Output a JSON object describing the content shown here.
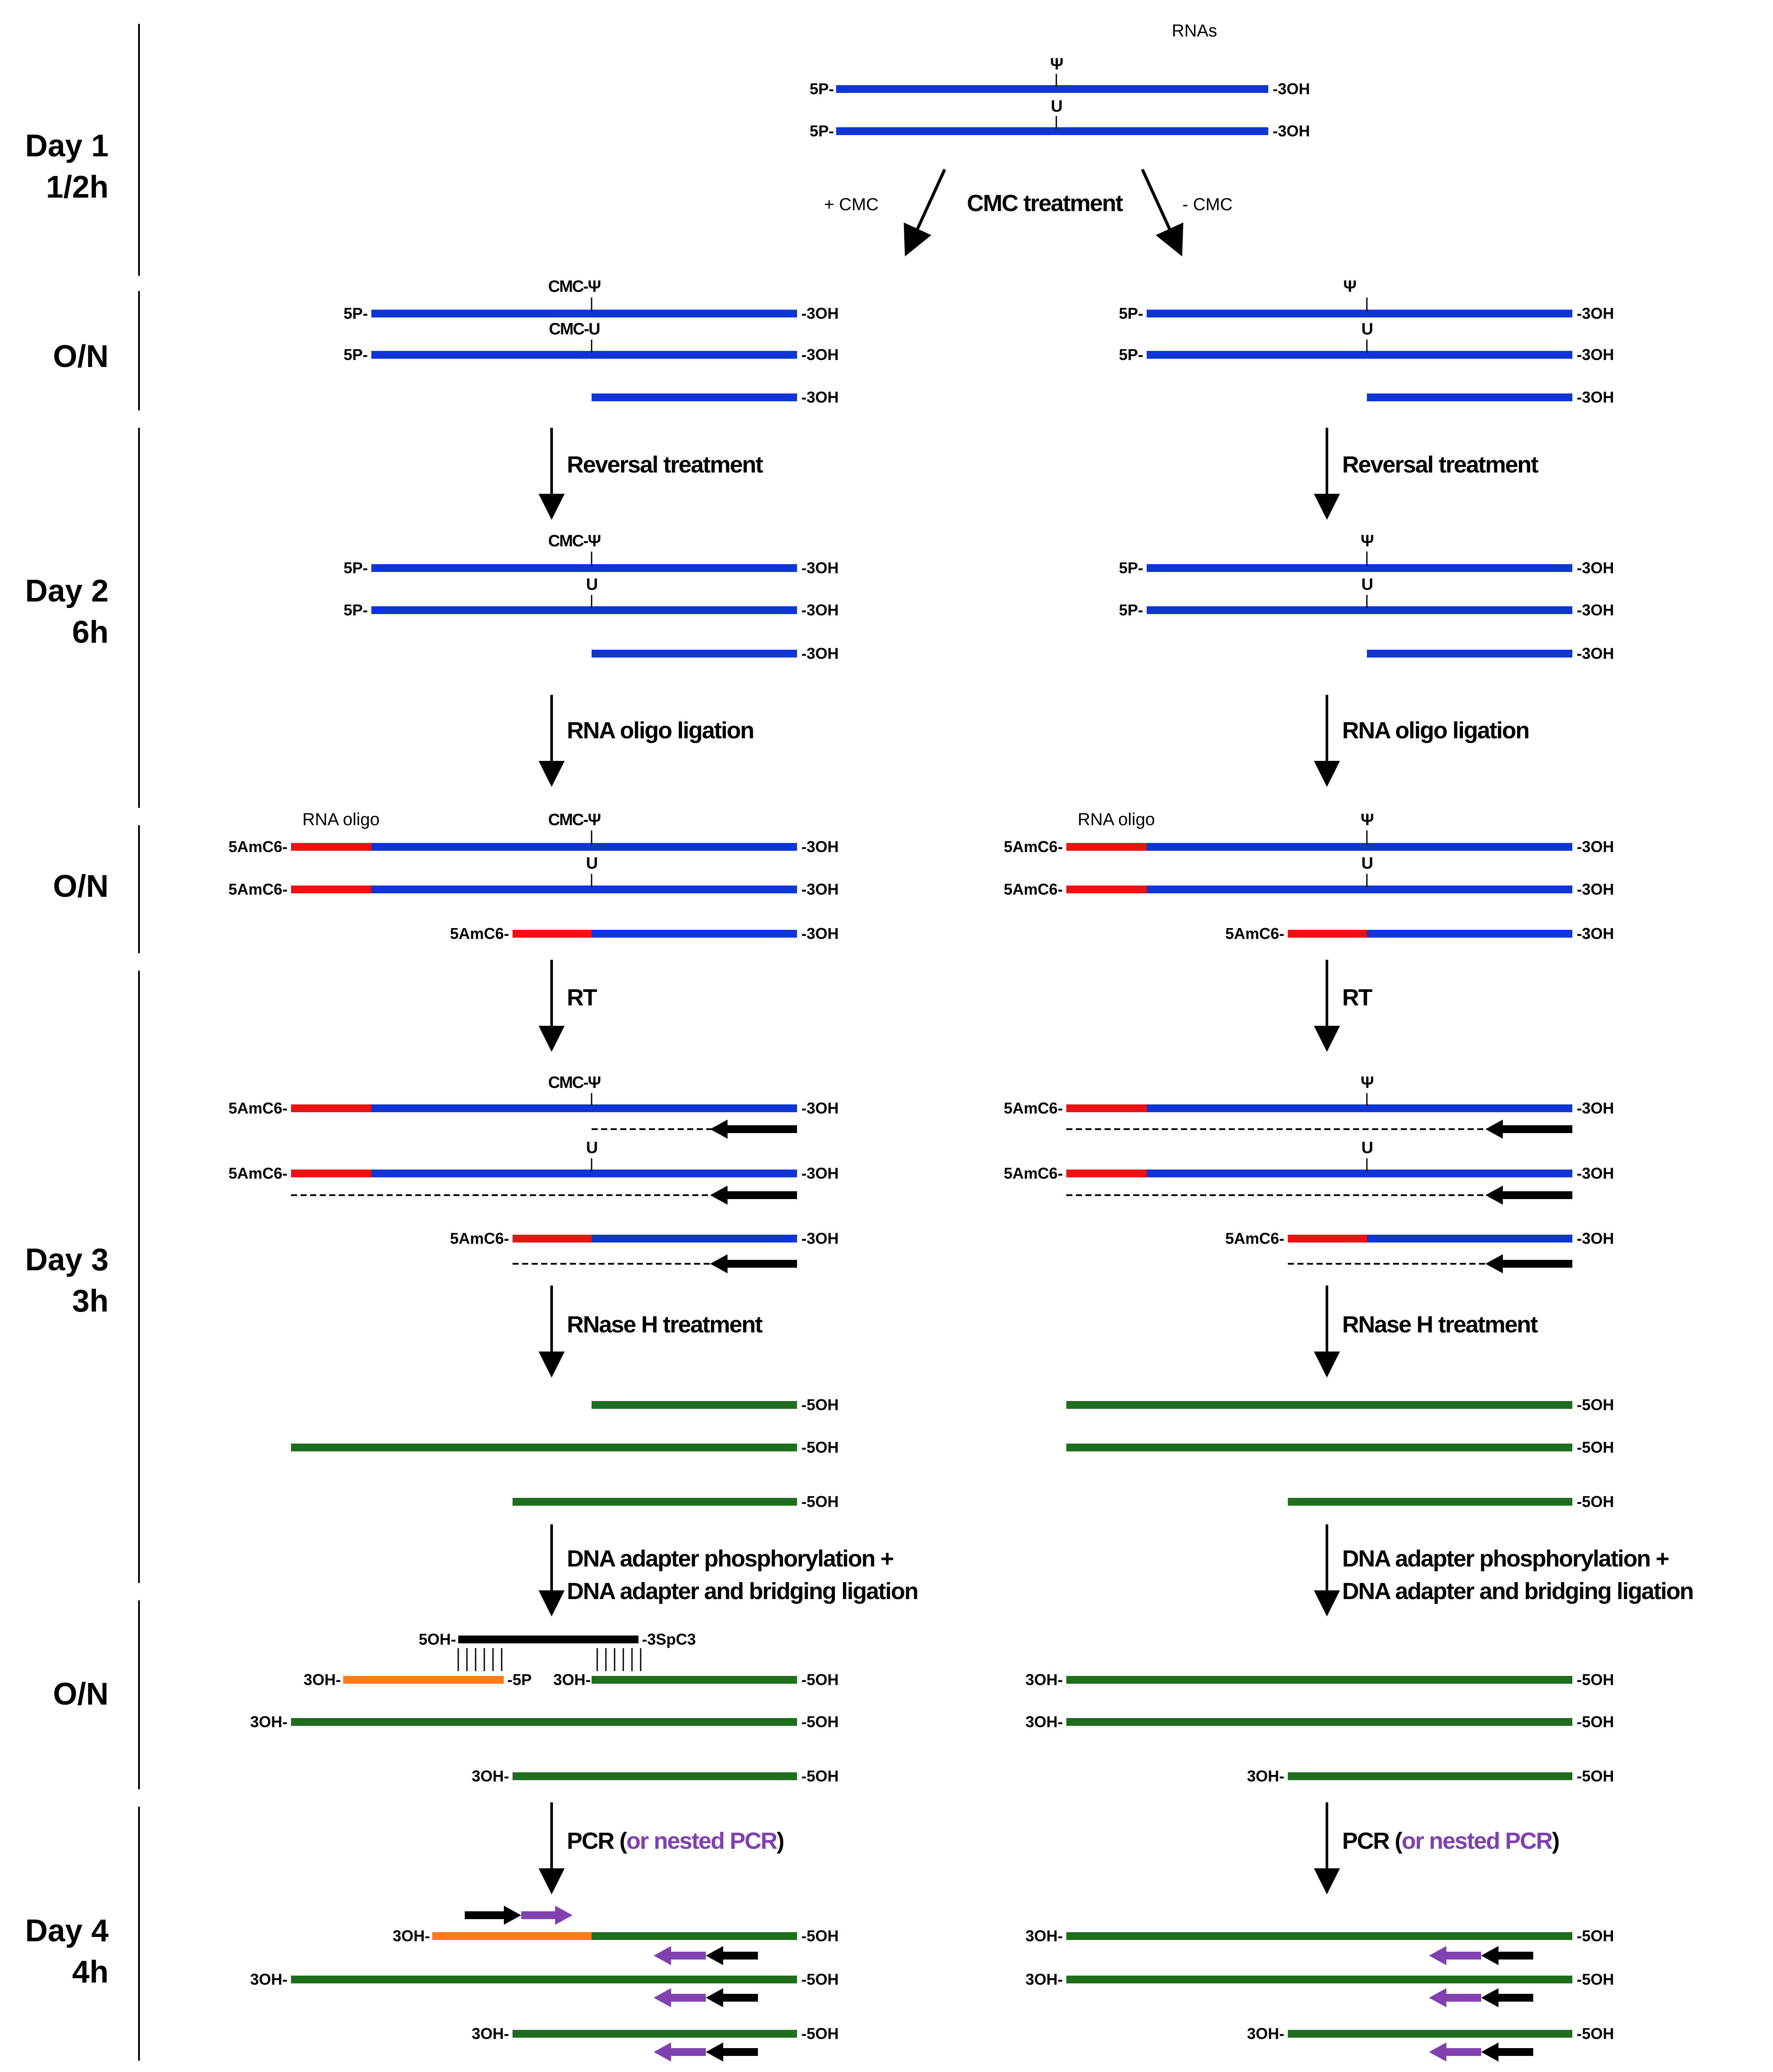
{
  "title": "RNAs",
  "colors": {
    "rna": "#1035d6",
    "oligo": "#ee1111",
    "cdna": "#1f6e1f",
    "adapter": "#ff7a1a",
    "primer": "#000000",
    "nested": "#8040b0"
  },
  "days": [
    {
      "line1": "Day 1",
      "line2": "1/2h"
    },
    {
      "line1": "O/N",
      "line2": ""
    },
    {
      "line1": "Day 2",
      "line2": "6h"
    },
    {
      "line1": "O/N",
      "line2": ""
    },
    {
      "line1": "Day 3",
      "line2": "3h"
    },
    {
      "line1": "O/N",
      "line2": ""
    },
    {
      "line1": "Day 4",
      "line2": "4h"
    }
  ],
  "branch": {
    "plus": "+ CMC",
    "label": "CMC treatment",
    "minus": "- CMC"
  },
  "steps": {
    "reversal": "Reversal treatment",
    "ligation": "RNA oligo ligation",
    "rt": "RT",
    "rnase": "RNase H treatment",
    "dna_line1": "DNA adapter phosphorylation +",
    "dna_line2": "DNA adapter and bridging ligation",
    "pcr": "PCR",
    "pcr_paren_open": " (",
    "pcr_nested": "or nested PCR",
    "pcr_paren_close": ")"
  },
  "labels": {
    "p5": "5P-",
    "oh3": "-3OH",
    "oh5": "-5OH",
    "oh3_left": "3OH-",
    "amc6": "5AmC6-",
    "psi": "Ψ",
    "u": "U",
    "cmc_psi": "CMC-Ψ",
    "cmc_u": "CMC-U",
    "rna_oligo": "RNA oligo",
    "adapter_top": "5OH-",
    "adapter_end": "-3SpC3",
    "adapter_p": "-5P"
  }
}
